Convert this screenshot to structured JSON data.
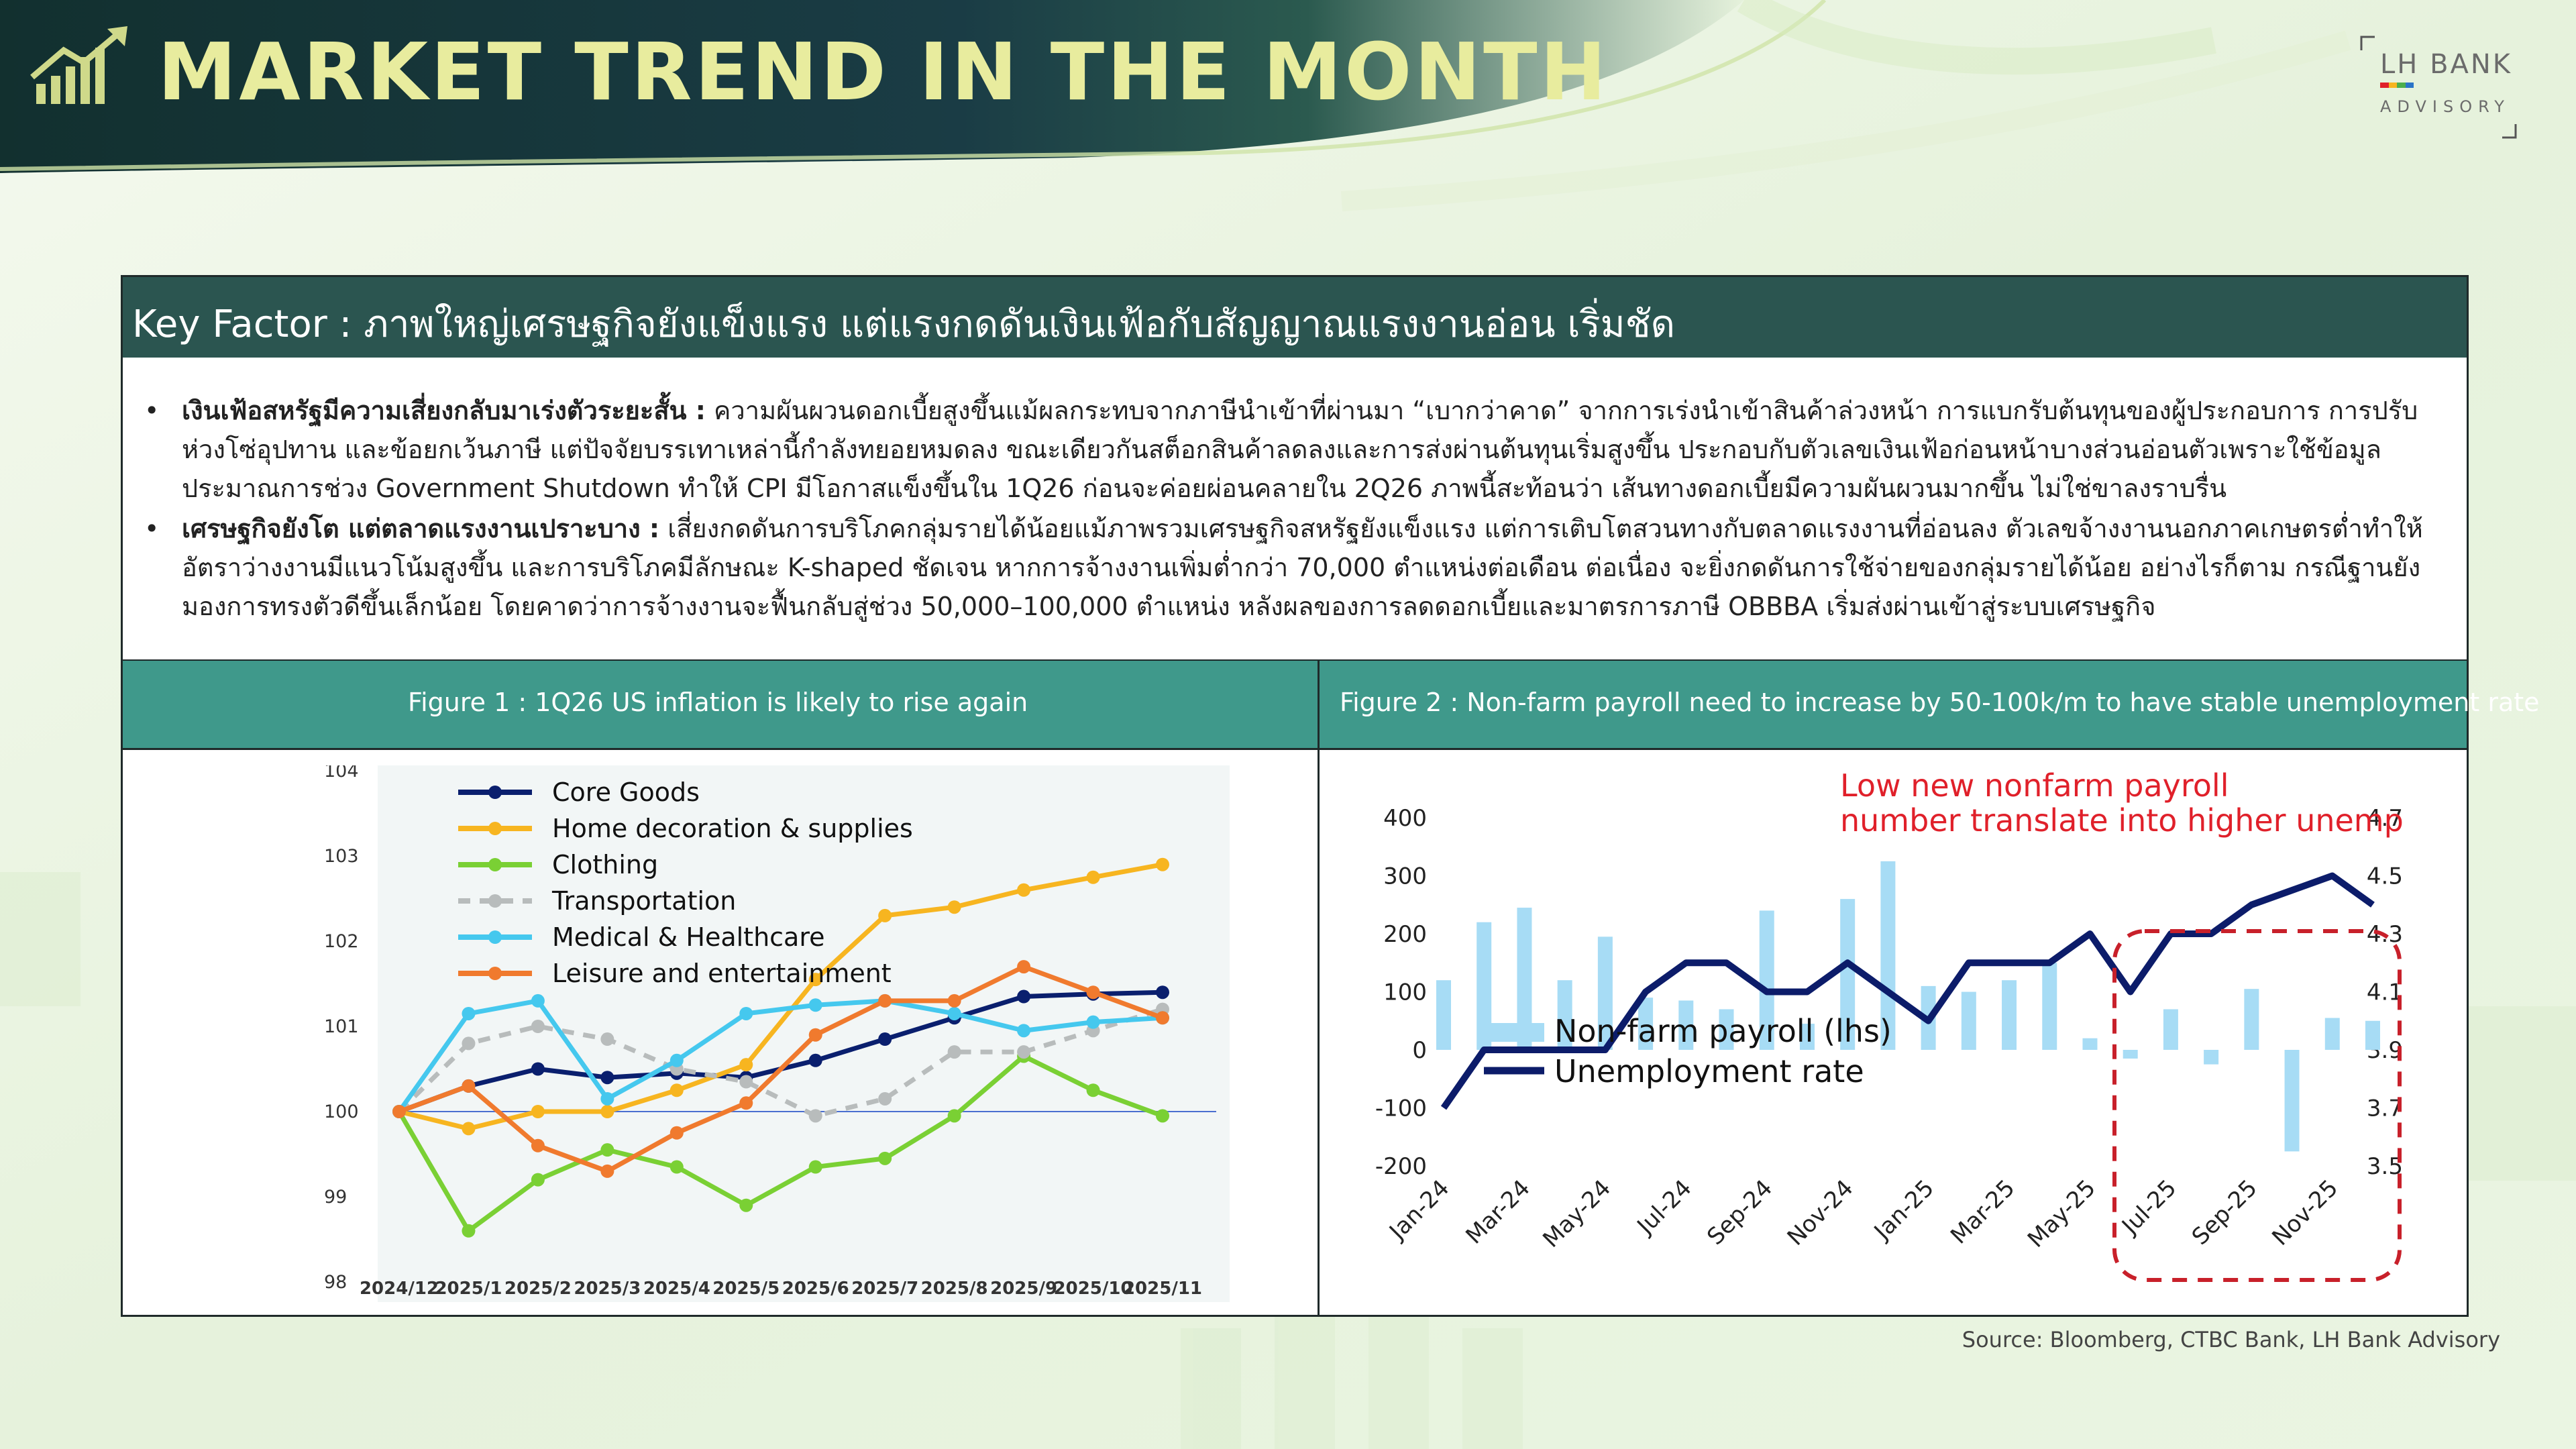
{
  "header": {
    "title": "MARKET TREND IN THE MONTH",
    "brand_line1": "LH BANK",
    "brand_line2": "ADVISORY",
    "accent": "#e8ec9e",
    "dark": "#173336"
  },
  "key_factor": {
    "title": "Key Factor : ภาพใหญ่เศรษฐกิจยังแข็งแรง แต่แรงกดดันเงินเฟ้อกับสัญญาณแรงงานอ่อน เริ่มชัด",
    "bullets": [
      {
        "lead": "เงินเฟ้อสหรัฐมีความเสี่ยงกลับมาเร่งตัวระยะสั้น :",
        "text": " ความผันผวนดอกเบี้ยสูงขึ้นแม้ผลกระทบจากภาษีนำเข้าที่ผ่านมา “เบากว่าคาด” จากการเร่งนำเข้าสินค้าล่วงหน้า การแบกรับต้นทุนของผู้ประกอบการ การปรับห่วงโซ่อุปทาน และข้อยกเว้นภาษี แต่ปัจจัยบรรเทาเหล่านี้กำลังทยอยหมดลง ขณะเดียวกันสต็อกสินค้าลดลงและการส่งผ่านต้นทุนเริ่มสูงขึ้น ประกอบกับตัวเลขเงินเฟ้อก่อนหน้าบางส่วนอ่อนตัวเพราะใช้ข้อมูลประมาณการช่วง Government Shutdown ทำให้ CPI มีโอกาสแข็งขึ้นใน 1Q26 ก่อนจะค่อยผ่อนคลายใน 2Q26 ภาพนี้สะท้อนว่า เส้นทางดอกเบี้ยมีความผันผวนมากขึ้น ไม่ใช่ขาลงราบรื่น"
      },
      {
        "lead": "เศรษฐกิจยังโต แต่ตลาดแรงงานเปราะบาง :",
        "text": " เสี่ยงกดดันการบริโภคกลุ่มรายได้น้อยแม้ภาพรวมเศรษฐกิจสหรัฐยังแข็งแรง แต่การเติบโตสวนทางกับตลาดแรงงานที่อ่อนลง ตัวเลขจ้างงานนอกภาคเกษตรต่ำทำให้อัตราว่างงานมีแนวโน้มสูงขึ้น และการบริโภคมีลักษณะ K-shaped ชัดเจน หากการจ้างงานเพิ่มต่ำกว่า 70,000 ตำแหน่งต่อเดือน ต่อเนื่อง จะยิ่งกดดันการใช้จ่ายของกลุ่มรายได้น้อย อย่างไรก็ตาม กรณีฐานยังมองการทรงตัวดีขึ้นเล็กน้อย โดยคาดว่าการจ้างงานจะฟื้นกลับสู่ช่วง 50,000–100,000 ตำแหน่ง หลังผลของการลดดอกเบี้ยและมาตรการภาษี OBBBA เริ่มส่งผ่านเข้าสู่ระบบเศรษฐกิจ"
      }
    ]
  },
  "figure1": {
    "caption": "Figure 1 :  1Q26 US inflation is likely to rise again"
  },
  "figure2": {
    "caption": "Figure 2 : Non-farm payroll need to increase by 50-100k/m to have stable unemployment rate"
  },
  "source": "Source: Bloomberg, CTBC Bank, LH Bank Advisory",
  "chart_data": [
    {
      "type": "line",
      "x": [
        "2024/12",
        "2025/1",
        "2025/2",
        "2025/3",
        "2025/4",
        "2025/5",
        "2025/6",
        "2025/7",
        "2025/8",
        "2025/9",
        "2025/10",
        "2025/11"
      ],
      "ylim": [
        98,
        104
      ],
      "yticks": [
        98,
        99,
        100,
        101,
        102,
        103,
        104
      ],
      "reference_line": 100,
      "legend_position": "top-left",
      "series": [
        {
          "name": "Core Goods",
          "color": "#0a1f6e",
          "dashed": false,
          "values": [
            100.0,
            100.3,
            100.5,
            100.4,
            100.45,
            100.4,
            100.6,
            100.85,
            101.1,
            101.35,
            101.38,
            101.4
          ]
        },
        {
          "name": "Home decoration & supplies",
          "color": "#f7b520",
          "dashed": false,
          "values": [
            100.0,
            99.8,
            100.0,
            100.0,
            100.25,
            100.55,
            101.55,
            102.3,
            102.4,
            102.6,
            102.75,
            102.9
          ]
        },
        {
          "name": "Clothing",
          "color": "#7ad034",
          "dashed": false,
          "values": [
            100.0,
            98.6,
            99.2,
            99.55,
            99.35,
            98.9,
            99.35,
            99.45,
            99.95,
            100.65,
            100.25,
            99.95
          ]
        },
        {
          "name": "Transportation",
          "color": "#b8bcbc",
          "dashed": true,
          "values": [
            100.0,
            100.8,
            101.0,
            100.85,
            100.5,
            100.35,
            99.95,
            100.15,
            100.7,
            100.7,
            100.95,
            101.2
          ]
        },
        {
          "name": "Medical & Healthcare",
          "color": "#45c8ee",
          "dashed": false,
          "values": [
            100.0,
            101.15,
            101.3,
            100.15,
            100.6,
            101.15,
            101.25,
            101.3,
            101.15,
            100.95,
            101.05,
            101.1
          ]
        },
        {
          "name": "Leisure and entertainment",
          "color": "#f07a2e",
          "dashed": false,
          "values": [
            100.0,
            100.3,
            99.6,
            99.3,
            99.75,
            100.1,
            100.9,
            101.3,
            101.3,
            101.7,
            101.4,
            101.1
          ]
        }
      ]
    },
    {
      "type": "bar+line",
      "annotation": "Low new nonfarm payroll number translate into higher unemployment",
      "annotation_color": "#e0202a",
      "x_labels": [
        "Jan-24",
        "Mar-24",
        "May-24",
        "Jul-24",
        "Sep-24",
        "Nov-24",
        "Jan-25",
        "Mar-25",
        "May-25",
        "Jul-25",
        "Sep-25",
        "Nov-25"
      ],
      "y_left": {
        "ticks": [
          400,
          300,
          200,
          100,
          0,
          -100,
          -200
        ],
        "lim": [
          -200,
          400
        ]
      },
      "y_right": {
        "ticks": [
          "4.7",
          "4.5",
          "4.3",
          "4.1",
          "3.9",
          "3.7",
          "3.5"
        ],
        "lim": [
          3.5,
          4.7
        ]
      },
      "legend_position": "bottom-left",
      "series": [
        {
          "name": "Non-farm payroll (lhs)",
          "type": "bar",
          "color": "#a7dcf5",
          "values": [
            120,
            220,
            245,
            120,
            195,
            90,
            85,
            70,
            240,
            45,
            260,
            325,
            110,
            100,
            120,
            150,
            20,
            -15,
            70,
            -25,
            105,
            -175,
            55,
            50
          ]
        },
        {
          "name": "Unemployment rate",
          "type": "line",
          "color": "#0c1c6a",
          "values": [
            3.7,
            3.9,
            3.9,
            3.9,
            3.9,
            4.1,
            4.2,
            4.2,
            4.1,
            4.1,
            4.2,
            4.1,
            4.0,
            4.2,
            4.2,
            4.2,
            4.3,
            4.1,
            4.3,
            4.3,
            4.4,
            4.45,
            4.5,
            4.4
          ]
        }
      ]
    }
  ]
}
